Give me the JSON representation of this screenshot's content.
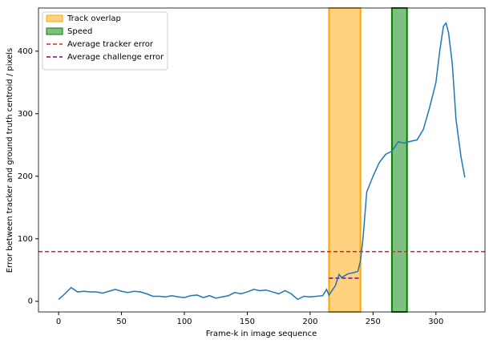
{
  "chart_data": {
    "type": "line",
    "xlabel": "Frame-k in image sequence",
    "ylabel": "Error between tracker and ground truth centroid / pixels",
    "xlim": [
      -16,
      339
    ],
    "ylim": [
      -17,
      469
    ],
    "xticks": [
      0,
      50,
      100,
      150,
      200,
      250,
      300
    ],
    "yticks": [
      0,
      100,
      200,
      300,
      400
    ],
    "legend": "upper left",
    "x": [
      0,
      5,
      10,
      15,
      20,
      25,
      30,
      35,
      40,
      45,
      50,
      55,
      60,
      65,
      70,
      75,
      80,
      85,
      90,
      95,
      100,
      105,
      110,
      115,
      120,
      125,
      130,
      135,
      140,
      145,
      150,
      155,
      160,
      165,
      170,
      175,
      180,
      185,
      190,
      195,
      200,
      205,
      210,
      213,
      215,
      220,
      223,
      225,
      230,
      235,
      238,
      240,
      242,
      245,
      250,
      255,
      260,
      265,
      270,
      275,
      280,
      285,
      290,
      295,
      300,
      303,
      306,
      308,
      310,
      313,
      316,
      320,
      323
    ],
    "series": [
      {
        "color": "#1f77b4",
        "values": [
          3,
          12,
          22,
          15,
          16,
          15,
          15,
          13,
          16,
          19,
          16,
          14,
          16,
          15,
          12,
          8,
          8,
          7,
          9,
          7,
          6,
          9,
          10,
          6,
          9,
          5,
          7,
          9,
          14,
          12,
          15,
          19,
          17,
          18,
          15,
          12,
          17,
          12,
          3,
          8,
          7,
          8,
          9,
          19,
          10,
          25,
          43,
          38,
          44,
          46,
          48,
          65,
          100,
          175,
          200,
          222,
          235,
          240,
          255,
          253,
          256,
          258,
          275,
          310,
          350,
          400,
          440,
          445,
          430,
          380,
          290,
          230,
          198
        ]
      }
    ],
    "spans": [
      {
        "name": "Track overlap",
        "start": 215,
        "end": 240,
        "color": "#ffa500"
      },
      {
        "name": "Speed",
        "start": 265,
        "end": 277,
        "color": "#008000"
      }
    ],
    "hlines": [
      {
        "name": "Average tracker error",
        "value": 79.5,
        "color": "#d62728"
      },
      {
        "name": "Average challenge error",
        "value": 37,
        "start": 215,
        "end": 240,
        "color": "#800080"
      }
    ]
  }
}
